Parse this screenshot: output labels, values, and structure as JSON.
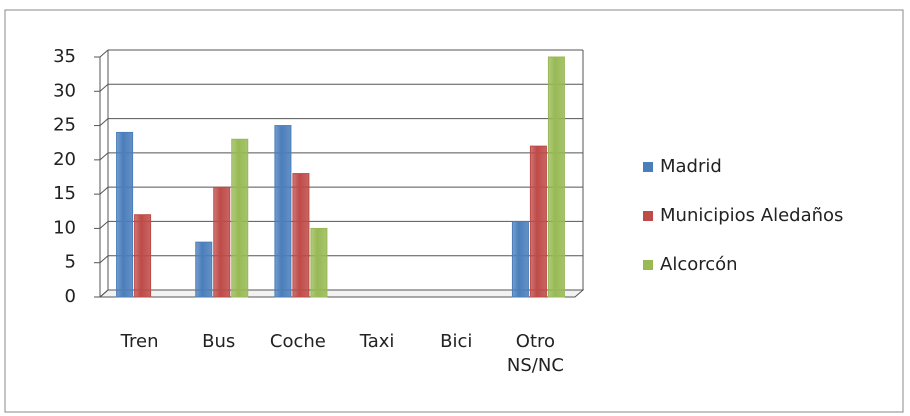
{
  "chart_data": {
    "type": "bar",
    "categories": [
      "Tren",
      "Bus",
      "Coche",
      "Taxi",
      "Bici",
      "Otro NS/NC"
    ],
    "series": [
      {
        "name": "Madrid",
        "color": "#4a7ebb",
        "values": [
          24,
          8,
          25,
          0,
          0,
          11
        ]
      },
      {
        "name": "Municipios Aledaños",
        "color": "#be4b48",
        "values": [
          12,
          16,
          18,
          0,
          0,
          22
        ]
      },
      {
        "name": "Alcorcón",
        "color": "#98b954",
        "values": [
          0,
          23,
          10,
          0,
          0,
          35
        ]
      }
    ],
    "ylim": [
      0,
      35
    ],
    "yticks": [
      0,
      5,
      10,
      15,
      20,
      25,
      30,
      35
    ],
    "grid": true,
    "legend": "right"
  }
}
